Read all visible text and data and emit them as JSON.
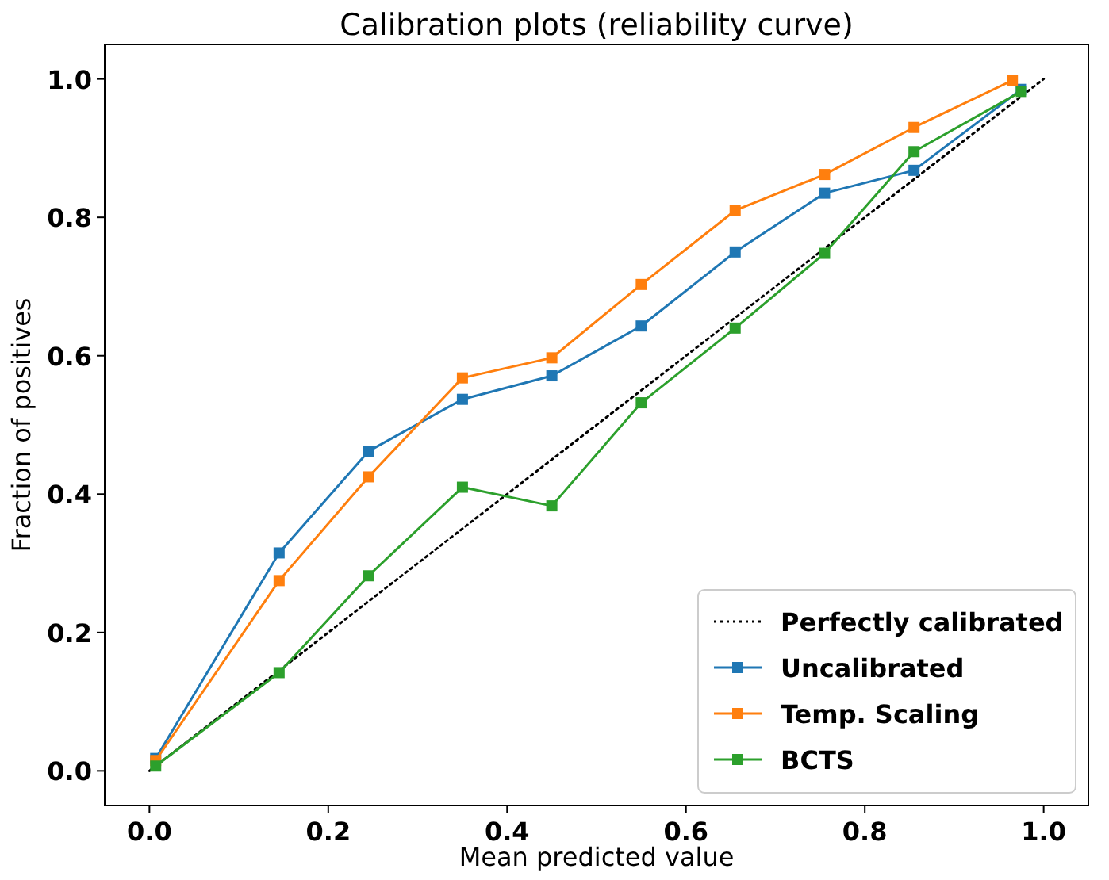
{
  "chart_data": {
    "type": "line",
    "title": "Calibration plots  (reliability curve)",
    "xlabel": "Mean predicted value",
    "ylabel": "Fraction of positives",
    "xlim": [
      -0.05,
      1.05
    ],
    "ylim": [
      -0.05,
      1.05
    ],
    "xticks": [
      {
        "value": 0,
        "label": "0.0"
      },
      {
        "value": 0.2,
        "label": "0.2"
      },
      {
        "value": 0.4,
        "label": "0.4"
      },
      {
        "value": 0.6,
        "label": "0.6"
      },
      {
        "value": 0.8,
        "label": "0.8"
      },
      {
        "value": 1,
        "label": "1.0"
      }
    ],
    "yticks": [
      {
        "value": 0,
        "label": "0.0"
      },
      {
        "value": 0.2,
        "label": "0.2"
      },
      {
        "value": 0.4,
        "label": "0.4"
      },
      {
        "value": 0.6,
        "label": "0.6"
      },
      {
        "value": 0.8,
        "label": "0.8"
      },
      {
        "value": 1,
        "label": "1.0"
      }
    ],
    "grid": false,
    "legend": "bottom right",
    "marker": "square",
    "series": [
      {
        "name": "Perfectly calibrated",
        "color": "#000000",
        "marker": "none",
        "line_style": "dotted",
        "x": [
          0,
          1
        ],
        "values": [
          0,
          1
        ]
      },
      {
        "name": "Uncalibrated",
        "color": "#1f77b4",
        "x": [
          0.007,
          0.145,
          0.245,
          0.35,
          0.45,
          0.55,
          0.655,
          0.755,
          0.855,
          0.975
        ],
        "values": [
          0.018,
          0.315,
          0.462,
          0.537,
          0.571,
          0.643,
          0.75,
          0.835,
          0.868,
          0.985
        ]
      },
      {
        "name": "Temp. Scaling",
        "color": "#ff7f0e",
        "x": [
          0.007,
          0.145,
          0.245,
          0.35,
          0.45,
          0.55,
          0.655,
          0.755,
          0.855,
          0.965
        ],
        "values": [
          0.015,
          0.275,
          0.425,
          0.568,
          0.597,
          0.703,
          0.81,
          0.862,
          0.93,
          0.998
        ]
      },
      {
        "name": "BCTS",
        "color": "#2ca02c",
        "x": [
          0.007,
          0.145,
          0.245,
          0.35,
          0.45,
          0.55,
          0.655,
          0.755,
          0.855,
          0.975
        ],
        "values": [
          0.007,
          0.142,
          0.282,
          0.41,
          0.383,
          0.532,
          0.64,
          0.748,
          0.895,
          0.982
        ]
      }
    ]
  }
}
